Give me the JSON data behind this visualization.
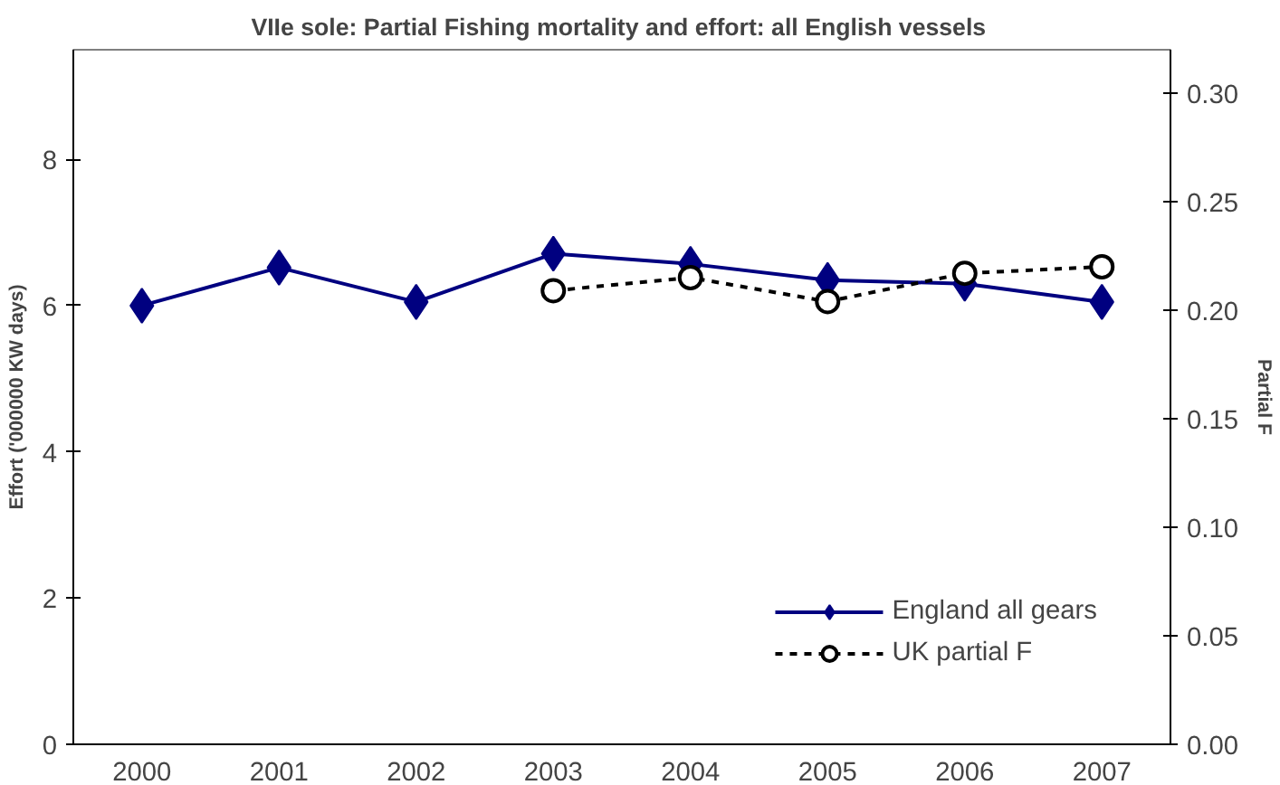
{
  "chart_data": {
    "type": "line",
    "title": "VIIe sole: Partial Fishing mortality  and effort: all English vessels",
    "ylabel": "Effort ('000000 KW days)",
    "y2label": "Partial F",
    "categories": [
      "2000",
      "2001",
      "2002",
      "2003",
      "2004",
      "2005",
      "2006",
      "2007"
    ],
    "series": [
      {
        "name": "England all gears",
        "color": "#000080",
        "marker": "diamond",
        "line_style": "solid",
        "values": [
          6.0,
          6.52,
          6.05,
          6.71,
          6.57,
          6.35,
          6.3,
          6.05
        ]
      },
      {
        "name": "UK partial F",
        "color": "#000000",
        "marker": "circle",
        "line_style": "dashed",
        "axis": "y2",
        "values": [
          null,
          null,
          null,
          0.209,
          0.215,
          0.204,
          0.217,
          0.22
        ]
      }
    ],
    "ylim": [
      0,
      9.5
    ],
    "yticks": [
      0,
      2,
      4,
      6,
      8
    ],
    "y2lim": [
      0,
      0.32
    ],
    "y2ticks": [
      {
        "value": 0,
        "label": "0.00"
      },
      {
        "value": 0.05,
        "label": "0.05"
      },
      {
        "value": 0.1,
        "label": "0.10"
      },
      {
        "value": 0.15,
        "label": "0.15"
      },
      {
        "value": 0.2,
        "label": "0.20"
      },
      {
        "value": 0.25,
        "label": "0.25"
      },
      {
        "value": 0.3,
        "label": "0.30"
      }
    ],
    "grid": false,
    "legend": "bottom right"
  }
}
